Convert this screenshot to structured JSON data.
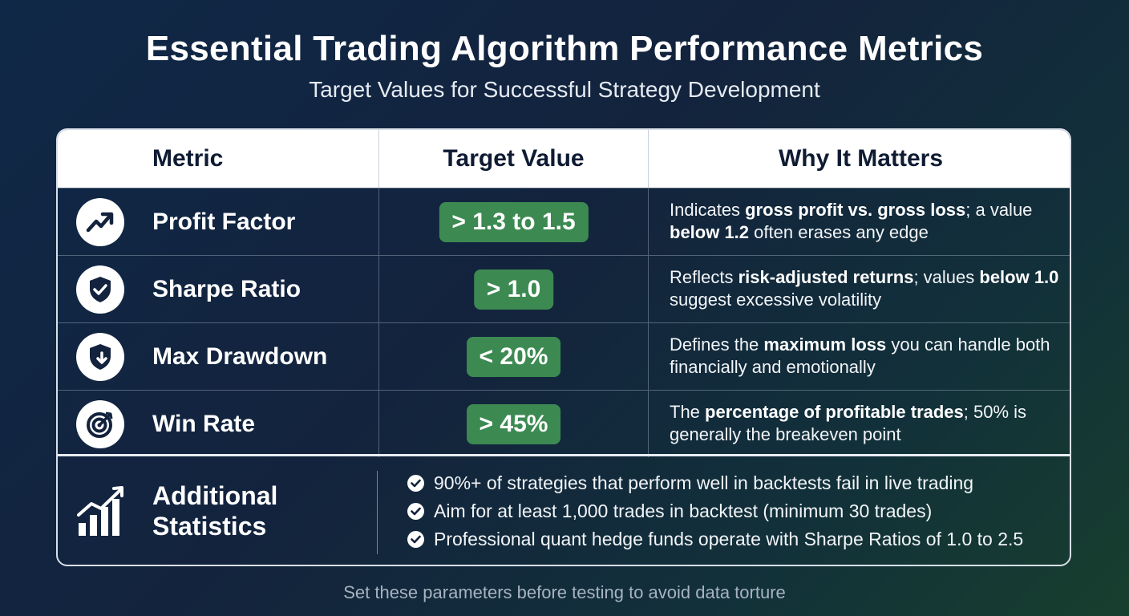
{
  "title": "Essential Trading Algorithm Performance Metrics",
  "subtitle": "Target Values for Successful Strategy Development",
  "table": {
    "headers": [
      "Metric",
      "Target Value",
      "Why It Matters"
    ],
    "rows": [
      {
        "icon": "trend-up-icon",
        "metric": "Profit Factor",
        "target": "> 1.3 to 1.5",
        "why": [
          {
            "t": "Indicates ",
            "b": false
          },
          {
            "t": "gross profit vs. gross loss",
            "b": true
          },
          {
            "t": "; a value ",
            "b": false
          },
          {
            "t": "below 1.2",
            "b": true
          },
          {
            "t": " often erases any edge",
            "b": false
          }
        ]
      },
      {
        "icon": "shield-check-icon",
        "metric": "Sharpe Ratio",
        "target": "> 1.0",
        "why": [
          {
            "t": "Reflects ",
            "b": false
          },
          {
            "t": "risk-adjusted returns",
            "b": true
          },
          {
            "t": "; values ",
            "b": false
          },
          {
            "t": "below 1.0",
            "b": true
          },
          {
            "t": " suggest excessive volatility",
            "b": false
          }
        ]
      },
      {
        "icon": "shield-down-arrow-icon",
        "metric": "Max Drawdown",
        "target": "< 20%",
        "why": [
          {
            "t": "Defines the ",
            "b": false
          },
          {
            "t": "maximum loss",
            "b": true
          },
          {
            "t": " you can handle both financially and emotionally",
            "b": false
          }
        ]
      },
      {
        "icon": "target-icon",
        "metric": "Win Rate",
        "target": "> 45%",
        "why": [
          {
            "t": "The ",
            "b": false
          },
          {
            "t": "percentage of profitable trades",
            "b": true
          },
          {
            "t": "; 50% is generally the breakeven point",
            "b": false
          }
        ]
      }
    ]
  },
  "additional": {
    "icon": "bar-chart-trend-icon",
    "title_line1": "Additional",
    "title_line2": "Statistics",
    "bullets": [
      "90%+ of strategies that perform well in backtests fail in live trading",
      "Aim for at least 1,000 trades in backtest (minimum 30 trades)",
      "Professional quant hedge funds operate with Sharpe Ratios of 1.0 to 2.5"
    ]
  },
  "footer": "Set these parameters before testing to avoid data torture",
  "colors": {
    "badge_green": "#3c8a52",
    "header_bg": "#ffffff",
    "header_text": "#0f1b33"
  }
}
